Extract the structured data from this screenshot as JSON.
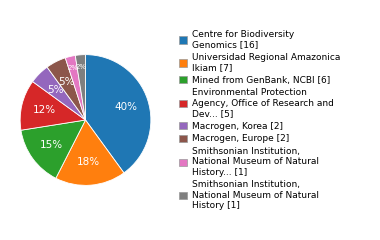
{
  "chart_data": {
    "type": "pie",
    "categories": [
      "Centre for Biodiversity\nGenomics [16]",
      "Universidad Regional Amazonica\nIkiam [7]",
      "Mined from GenBank, NCBI [6]",
      "Environmental Protection\nAgency, Office of Research and\nDev... [5]",
      "Macrogen, Korea [2]",
      "Macrogen, Europe [2]",
      "Smithsonian Institution,\nNational Museum of Natural\nHistory... [1]",
      "Smithsonian Institution,\nNational Museum of Natural\nHistory [1]"
    ],
    "values": [
      40,
      17.5,
      15,
      12.5,
      5,
      5,
      2.5,
      2.5
    ],
    "value_labels": [
      "40%",
      "18%",
      "15%",
      "12%",
      "5%",
      "5%",
      "2%",
      "2%"
    ],
    "data_labels": true,
    "legend": "center left"
  }
}
